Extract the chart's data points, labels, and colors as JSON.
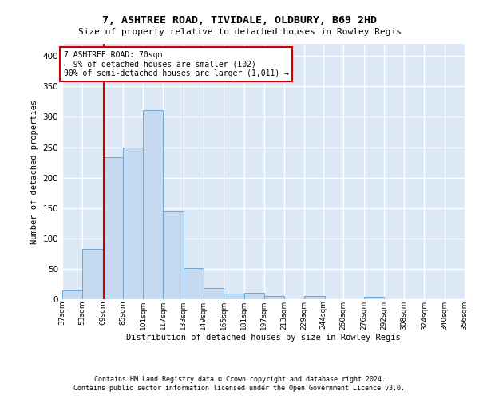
{
  "title1": "7, ASHTREE ROAD, TIVIDALE, OLDBURY, B69 2HD",
  "title2": "Size of property relative to detached houses in Rowley Regis",
  "xlabel": "Distribution of detached houses by size in Rowley Regis",
  "ylabel": "Number of detached properties",
  "footer1": "Contains HM Land Registry data © Crown copyright and database right 2024.",
  "footer2": "Contains public sector information licensed under the Open Government Licence v3.0.",
  "bin_labels": [
    "37sqm",
    "53sqm",
    "69sqm",
    "85sqm",
    "101sqm",
    "117sqm",
    "133sqm",
    "149sqm",
    "165sqm",
    "181sqm",
    "197sqm",
    "213sqm",
    "229sqm",
    "244sqm",
    "260sqm",
    "276sqm",
    "292sqm",
    "308sqm",
    "324sqm",
    "340sqm",
    "356sqm"
  ],
  "bin_edges": [
    37,
    53,
    69,
    85,
    101,
    117,
    133,
    149,
    165,
    181,
    197,
    213,
    229,
    244,
    260,
    276,
    292,
    308,
    324,
    340,
    356
  ],
  "bar_values": [
    15,
    83,
    233,
    250,
    311,
    145,
    51,
    19,
    9,
    10,
    5,
    0,
    5,
    0,
    0,
    4,
    0,
    0,
    0,
    0
  ],
  "bar_color": "#c5d9f0",
  "bar_edge_color": "#6ea6d0",
  "vline_x": 70,
  "vline_color": "#cc0000",
  "annotation_line1": "7 ASHTREE ROAD: 70sqm",
  "annotation_line2": "← 9% of detached houses are smaller (102)",
  "annotation_line3": "90% of semi-detached houses are larger (1,011) →",
  "annotation_box_facecolor": "#ffffff",
  "annotation_box_edgecolor": "#cc0000",
  "ylim": [
    0,
    420
  ],
  "yticks": [
    0,
    50,
    100,
    150,
    200,
    250,
    300,
    350,
    400
  ],
  "bg_color": "#dce8f5",
  "grid_color": "#ffffff",
  "fig_facecolor": "#ffffff"
}
